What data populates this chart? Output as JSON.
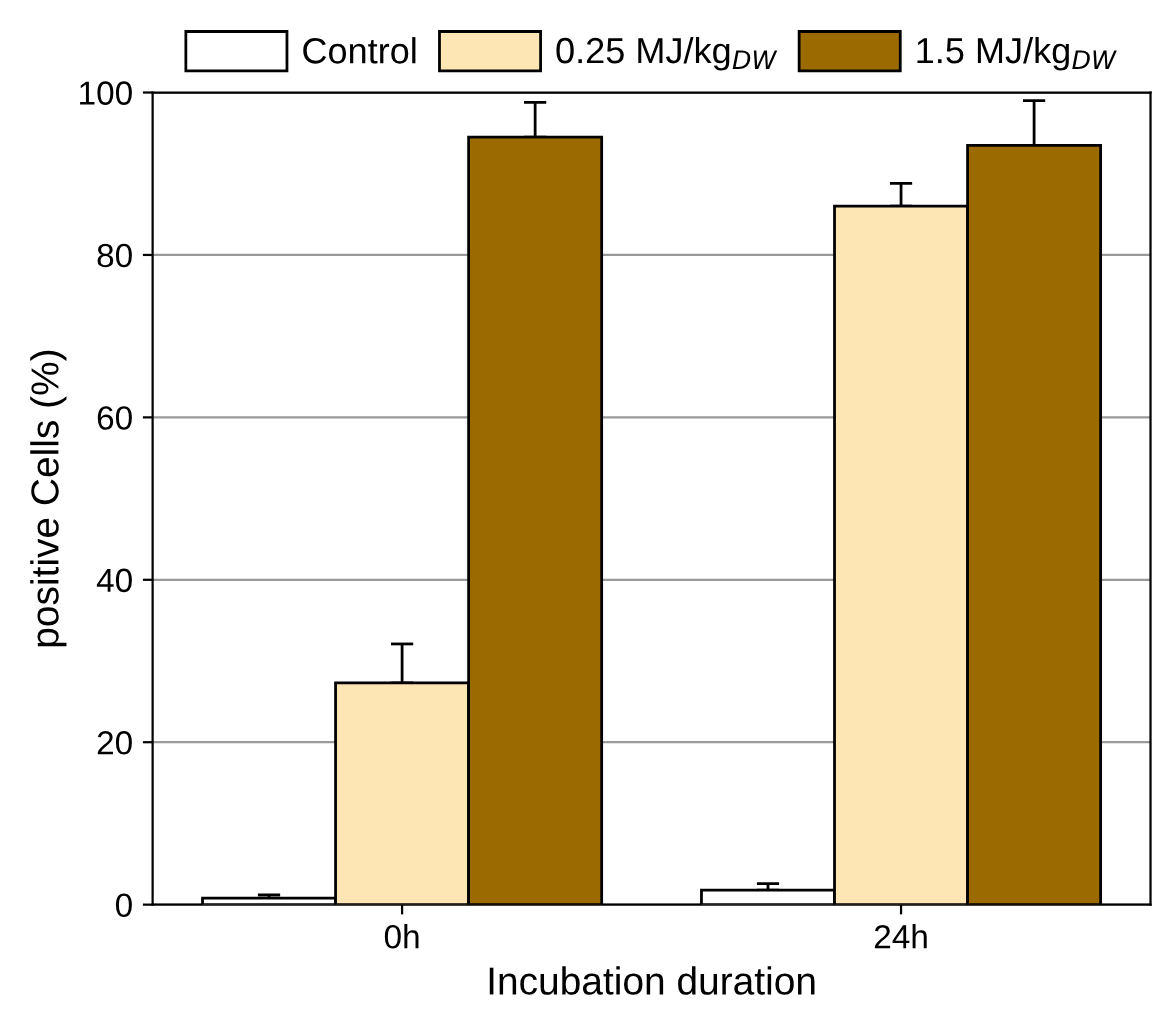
{
  "chart_data": {
    "type": "bar",
    "xlabel": "Incubation duration",
    "ylabel": "positive Cells (%)",
    "categories": [
      "0h",
      "24h"
    ],
    "series": [
      {
        "name": "Control",
        "color": "#ffffff",
        "values": [
          0.8,
          1.8
        ],
        "errors": [
          [
            0.8,
            1.2
          ],
          [
            1.8,
            2.6
          ]
        ]
      },
      {
        "name": "0.25 MJ/kg$_{DW}$",
        "color": "#fde5b4",
        "values": [
          27.3,
          86
        ],
        "errors": [
          [
            27.3,
            32.1
          ],
          [
            86,
            88.8
          ]
        ]
      },
      {
        "name": "1.5 MJ/kg$_{DW}$",
        "color": "#9b6a00",
        "values": [
          94.5,
          93.5
        ],
        "errors": [
          [
            94.5,
            98.8
          ],
          [
            93.5,
            99
          ]
        ]
      }
    ],
    "ylim": [
      0,
      100
    ],
    "yticks": [
      0,
      20,
      40,
      60,
      80,
      100
    ],
    "grid": "y",
    "legend": "top"
  }
}
